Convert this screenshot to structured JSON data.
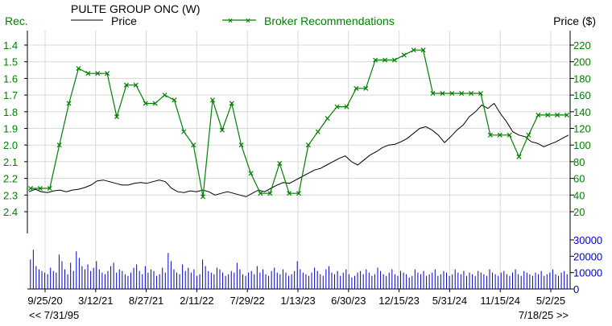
{
  "chart_data": {
    "type": "line",
    "title": "PULTE GROUP ONC (W)",
    "legend": {
      "price_label": "Price",
      "broker_label": "Broker Recommendations",
      "position": "top",
      "price_color": "#000000",
      "broker_color": "#008000"
    },
    "left_axis": {
      "label": "Rec.",
      "ticks": [
        "1.4",
        "1.5",
        "1.6",
        "1.7",
        "1.8",
        "1.9",
        "2.0",
        "2.1",
        "2.2",
        "2.3",
        "2.4"
      ],
      "range": [
        1.4,
        2.4
      ],
      "inverted": true,
      "color": "#008000"
    },
    "right_axis": {
      "label": "Price ($)",
      "ticks": [
        "220",
        "200",
        "180",
        "160",
        "140",
        "120",
        "100",
        "80",
        "60",
        "40",
        "20"
      ],
      "range": [
        20,
        220
      ],
      "color": "#008000"
    },
    "volume_axis": {
      "ticks": [
        "30000",
        "20000",
        "10000",
        "0"
      ],
      "range": [
        0,
        30000
      ],
      "color": "#0000cc"
    },
    "x_ticks": [
      "9/25/20",
      "3/12/21",
      "8/27/21",
      "2/11/22",
      "7/29/22",
      "1/13/23",
      "6/30/23",
      "12/15/23",
      "5/31/24",
      "11/15/24",
      "5/2/25"
    ],
    "footer": {
      "left": "<< 7/31/95",
      "right": "7/18/25 >>"
    },
    "grid": true,
    "series": [
      {
        "name": "Broker Recommendations",
        "axis": "left",
        "values": [
          2.26,
          2.26,
          2.26,
          2.0,
          1.75,
          1.54,
          1.57,
          1.57,
          1.57,
          1.83,
          1.64,
          1.64,
          1.75,
          1.75,
          1.7,
          1.73,
          1.92,
          2.0,
          2.31,
          1.73,
          1.91,
          1.75,
          2.0,
          2.17,
          2.29,
          2.29,
          2.11,
          2.29,
          2.29,
          2.0,
          1.92,
          1.84,
          1.77,
          1.77,
          1.66,
          1.66,
          1.49,
          1.49,
          1.49,
          1.46,
          1.43,
          1.43,
          1.69,
          1.69,
          1.69,
          1.69,
          1.69,
          1.69,
          1.94,
          1.94,
          1.94,
          2.07,
          1.94,
          1.82,
          1.82,
          1.82,
          1.82
        ]
      },
      {
        "name": "Price",
        "axis": "right",
        "values": [
          44,
          47,
          44,
          43,
          45,
          46,
          44,
          46,
          47,
          49,
          52,
          57,
          58,
          56,
          54,
          52,
          52,
          54,
          55,
          54,
          56,
          58,
          56,
          48,
          44,
          43,
          45,
          44,
          46,
          44,
          40,
          42,
          44,
          42,
          40,
          38,
          42,
          46,
          44,
          48,
          52,
          55,
          54,
          58,
          62,
          66,
          70,
          72,
          76,
          80,
          84,
          87,
          80,
          76,
          82,
          88,
          92,
          97,
          100,
          101,
          104,
          108,
          114,
          120,
          122,
          118,
          112,
          103,
          110,
          118,
          124,
          134,
          140,
          148,
          144,
          150,
          138,
          128,
          116,
          112,
          110,
          104,
          102,
          98,
          101,
          104,
          108,
          112
        ]
      },
      {
        "name": "Volume",
        "axis": "volume",
        "values": [
          18000,
          24000,
          14000,
          12000,
          11000,
          10000,
          9000,
          13000,
          11000,
          10000,
          21000,
          17000,
          12000,
          9000,
          16000,
          11000,
          23000,
          19000,
          14000,
          12000,
          15000,
          11000,
          13000,
          17000,
          12000,
          10000,
          9000,
          11000,
          14000,
          16000,
          10000,
          12000,
          11000,
          9000,
          8000,
          10000,
          13000,
          15000,
          11000,
          9000,
          14000,
          10000,
          12000,
          11000,
          8000,
          9000,
          13000,
          10000,
          22000,
          17000,
          12000,
          10000,
          9000,
          15000,
          11000,
          13000,
          10000,
          12000,
          8000,
          9000,
          18000,
          14000,
          11000,
          10000,
          9000,
          13000,
          12000,
          10000,
          8000,
          9000,
          11000,
          10000,
          16000,
          12000,
          9000,
          8000,
          10000,
          11000,
          9000,
          14000,
          10000,
          12000,
          9000,
          8000,
          11000,
          13000,
          10000,
          9000,
          12000,
          10000,
          8000,
          9000,
          11000,
          17000,
          12000,
          10000,
          9000,
          8000,
          10000,
          13000,
          11000,
          9000,
          8000,
          12000,
          14000,
          10000,
          9000,
          11000,
          8000,
          10000,
          12000,
          9000,
          7000,
          8000,
          10000,
          11000,
          9000,
          12000,
          10000,
          8000,
          9000,
          13000,
          11000,
          9000,
          8000,
          10000,
          12000,
          9000,
          8000,
          11000,
          10000,
          9000,
          7000,
          8000,
          12000,
          10000,
          9000,
          11000,
          8000,
          9000,
          10000,
          12000,
          8000,
          9000,
          11000,
          10000,
          8000,
          9000,
          12000,
          10000,
          9000,
          11000,
          8000,
          10000,
          9000,
          8000,
          11000,
          10000,
          9000,
          8000,
          12000,
          10000,
          9000,
          8000,
          10000,
          11000,
          9000,
          8000,
          10000,
          12000,
          9000,
          8000,
          11000,
          10000,
          9000,
          8000,
          10000,
          9000,
          11000,
          8000,
          9000,
          10000,
          12000,
          9000,
          8000,
          10000,
          11000,
          9000
        ]
      }
    ]
  }
}
